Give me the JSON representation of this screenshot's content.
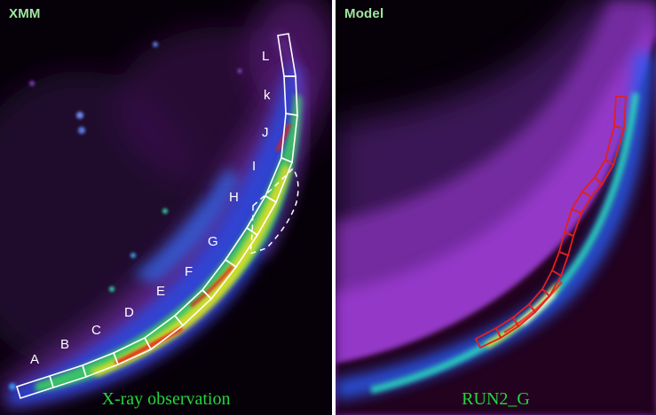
{
  "panels": {
    "left": {
      "label": "XMM",
      "caption": "X-ray observation",
      "regions": [
        "A",
        "B",
        "C",
        "D",
        "E",
        "F",
        "G",
        "H",
        "I",
        "J",
        "k",
        "L"
      ]
    },
    "right": {
      "label": "Model",
      "caption": "RUN2_G"
    }
  },
  "colors": {
    "background": "#060008",
    "separator": "#ffffff",
    "left_label": "#9fe6a0",
    "caption": "#23d63c",
    "left_regions": "#ffffff",
    "right_regions": "#e02020"
  }
}
